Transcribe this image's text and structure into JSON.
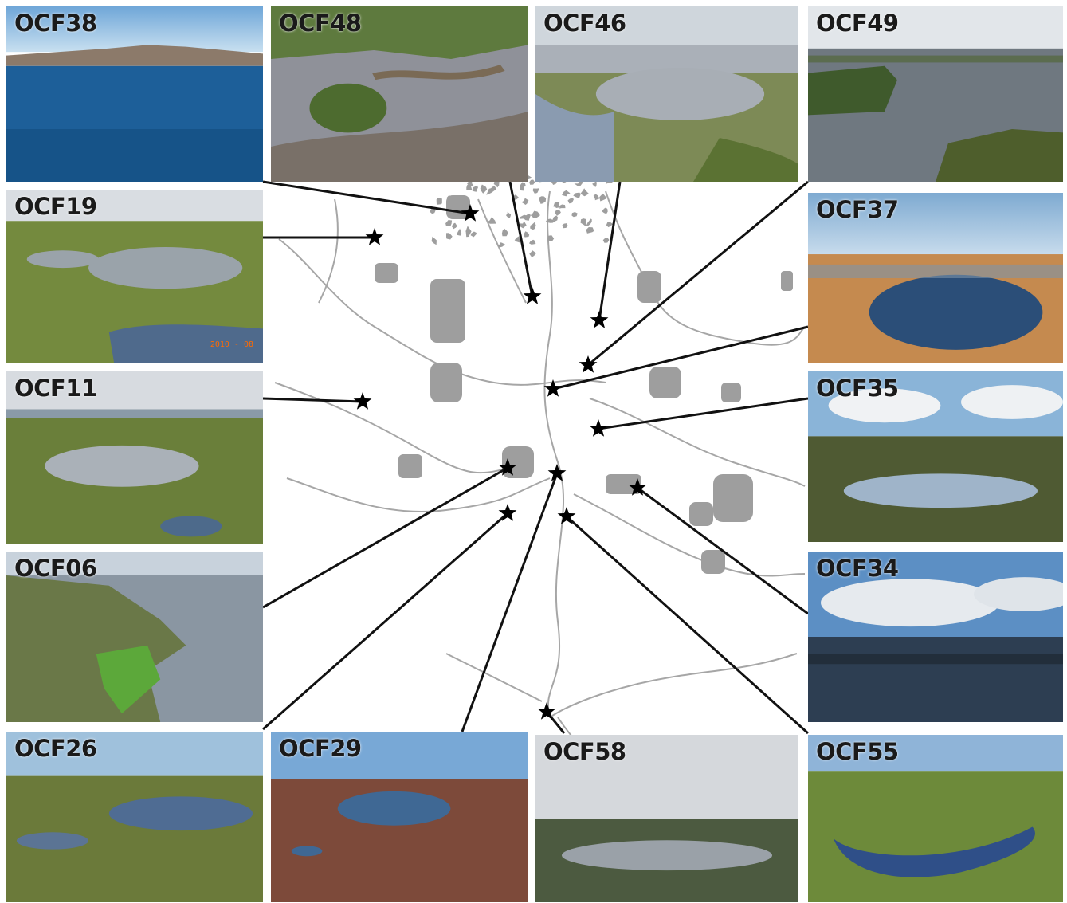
{
  "sites": {
    "ocf38": "OCF38",
    "ocf48": "OCF48",
    "ocf46": "OCF46",
    "ocf49": "OCF49",
    "ocf19": "OCF19",
    "ocf37": "OCF37",
    "ocf11": "OCF11",
    "ocf35": "OCF35",
    "ocf06": "OCF06",
    "ocf34": "OCF34",
    "ocf26": "OCF26",
    "ocf29": "OCF29",
    "ocf58": "OCF58",
    "ocf55": "OCF55"
  },
  "photo_stamp": "2010 - 08",
  "colors": {
    "map_lake": "#9e9e9e",
    "star": "#000000",
    "leader_line": "#111111"
  }
}
